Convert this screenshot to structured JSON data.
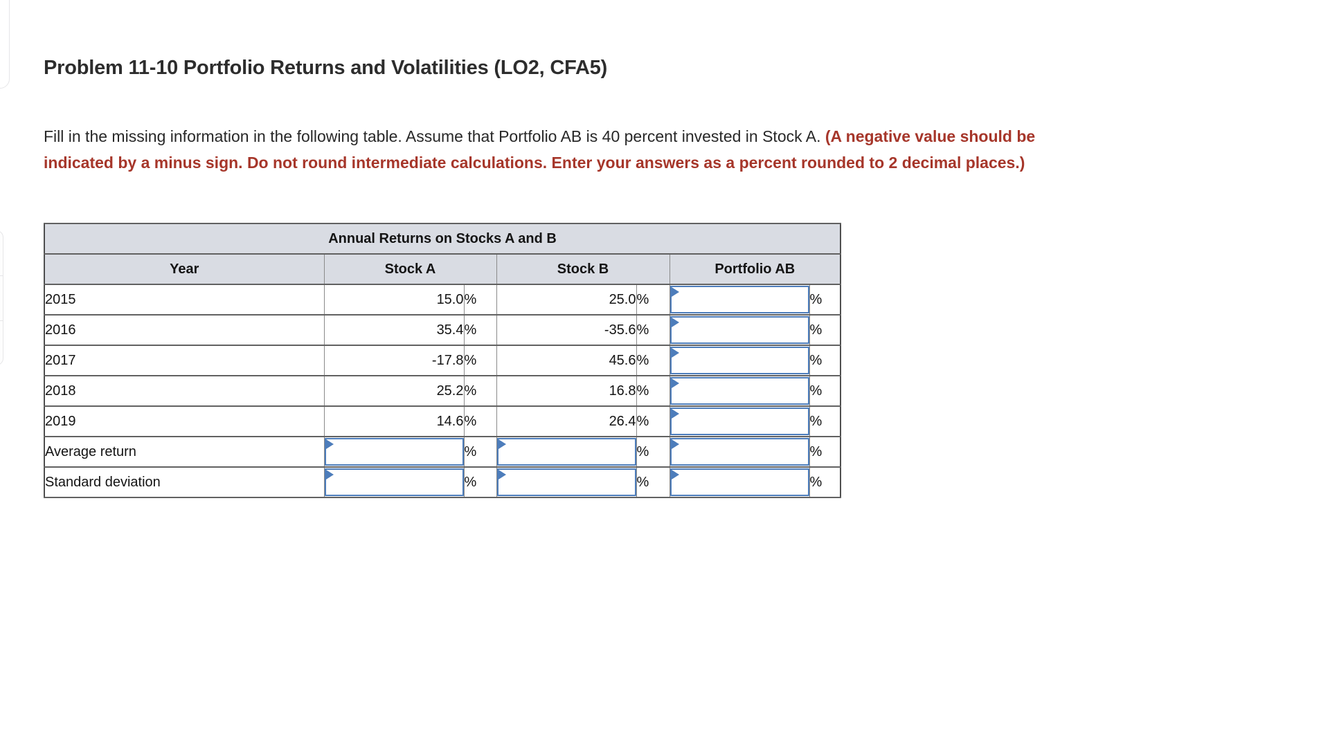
{
  "page": {
    "title": "Problem 11-10 Portfolio Returns and Volatilities (LO2, CFA5)",
    "instructions_normal": "Fill in the missing information in the following table. Assume that Portfolio AB is 40 percent invested in Stock A. ",
    "instructions_emphasis": "(A negative value should be indicated by a minus sign. Do not round intermediate calculations. Enter your answers as a percent rounded to 2 decimal places.)"
  },
  "table": {
    "title": "Annual Returns on Stocks A and B",
    "columns": [
      "Year",
      "Stock A",
      "Stock B",
      "Portfolio AB"
    ],
    "percent_symbol": "%",
    "rows": [
      {
        "label": "2015",
        "stock_a": "15.0",
        "stock_b": "25.0",
        "portfolio_ab": ""
      },
      {
        "label": "2016",
        "stock_a": "35.4",
        "stock_b": "-35.6",
        "portfolio_ab": ""
      },
      {
        "label": "2017",
        "stock_a": "-17.8",
        "stock_b": "45.6",
        "portfolio_ab": ""
      },
      {
        "label": "2018",
        "stock_a": "25.2",
        "stock_b": "16.8",
        "portfolio_ab": ""
      },
      {
        "label": "2019",
        "stock_a": "14.6",
        "stock_b": "26.4",
        "portfolio_ab": ""
      }
    ],
    "summary_rows": [
      {
        "label": "Average return",
        "stock_a": "",
        "stock_b": "",
        "portfolio_ab": ""
      },
      {
        "label": "Standard deviation",
        "stock_a": "",
        "stock_b": "",
        "portfolio_ab": ""
      }
    ]
  },
  "colors": {
    "accent_blue": "#4d7dbb",
    "header_bg": "#d9dce3",
    "emphasis_red": "#a6362a"
  }
}
